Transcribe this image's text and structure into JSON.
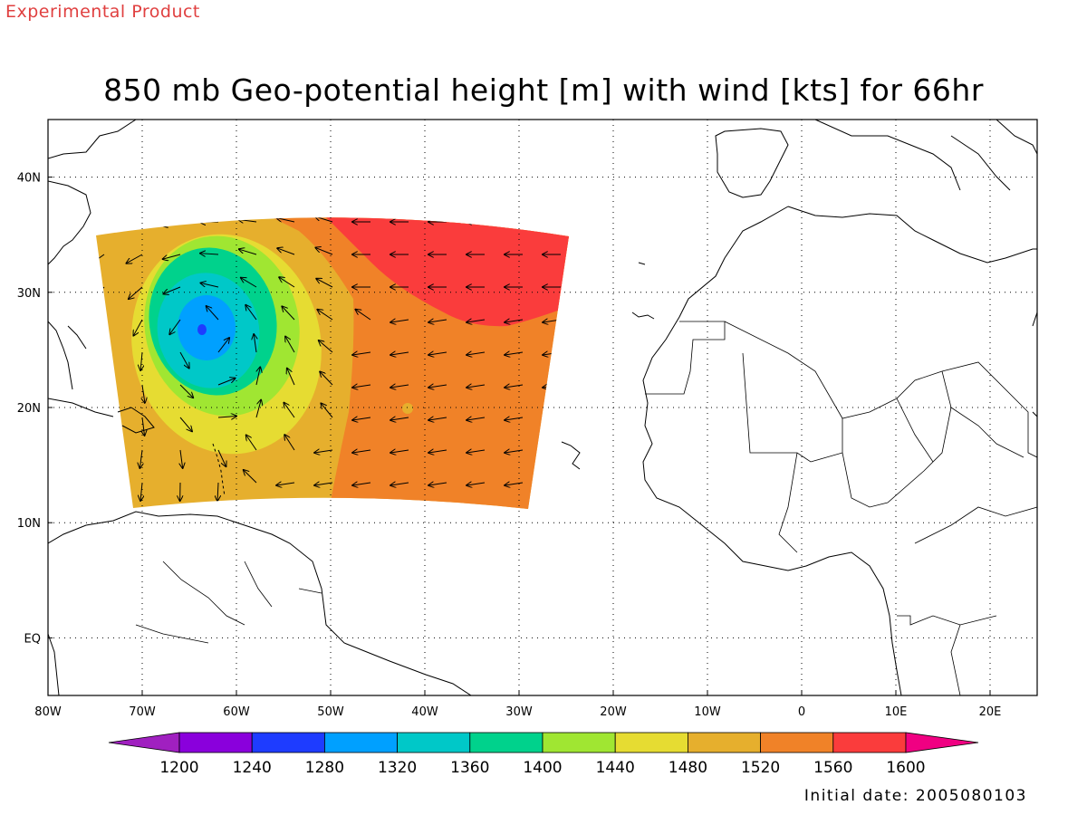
{
  "header": {
    "product_label": "Experimental Product",
    "title": "850 mb Geo-potential height [m] with wind [kts] for 66hr"
  },
  "footer": {
    "initial_date": "Initial date: 2005080103"
  },
  "map": {
    "lon_labels": [
      "80W",
      "70W",
      "60W",
      "50W",
      "40W",
      "30W",
      "20W",
      "10W",
      "0",
      "10E",
      "20E"
    ],
    "lat_labels": [
      "40N",
      "30N",
      "20N",
      "10N",
      "EQ"
    ],
    "extent": {
      "lon": [
        -80,
        25
      ],
      "lat": [
        -5,
        45
      ]
    },
    "grid": "dotted, every 10 degrees"
  },
  "colorbar": {
    "ticks": [
      "1200",
      "1240",
      "1280",
      "1320",
      "1360",
      "1400",
      "1440",
      "1480",
      "1520",
      "1560",
      "1600"
    ],
    "colors": [
      "#a020c0",
      "#8a00dc",
      "#1e3cff",
      "#00a0ff",
      "#00c8c8",
      "#00d28c",
      "#a0e632",
      "#e6dc32",
      "#e6af2d",
      "#f08228",
      "#fa3c3c",
      "#f00082"
    ]
  },
  "field": {
    "variable": "850 mb geopotential height",
    "units": "m",
    "domain": {
      "lon": [
        -75,
        -25
      ],
      "lat": [
        11,
        35
      ]
    },
    "low_center": {
      "lon": -64,
      "lat": 27,
      "approx_value": 1280
    },
    "high_region": "north-east, above 1560",
    "wind_pattern": "cyclonic circulation around low; easterly flow elsewhere"
  }
}
